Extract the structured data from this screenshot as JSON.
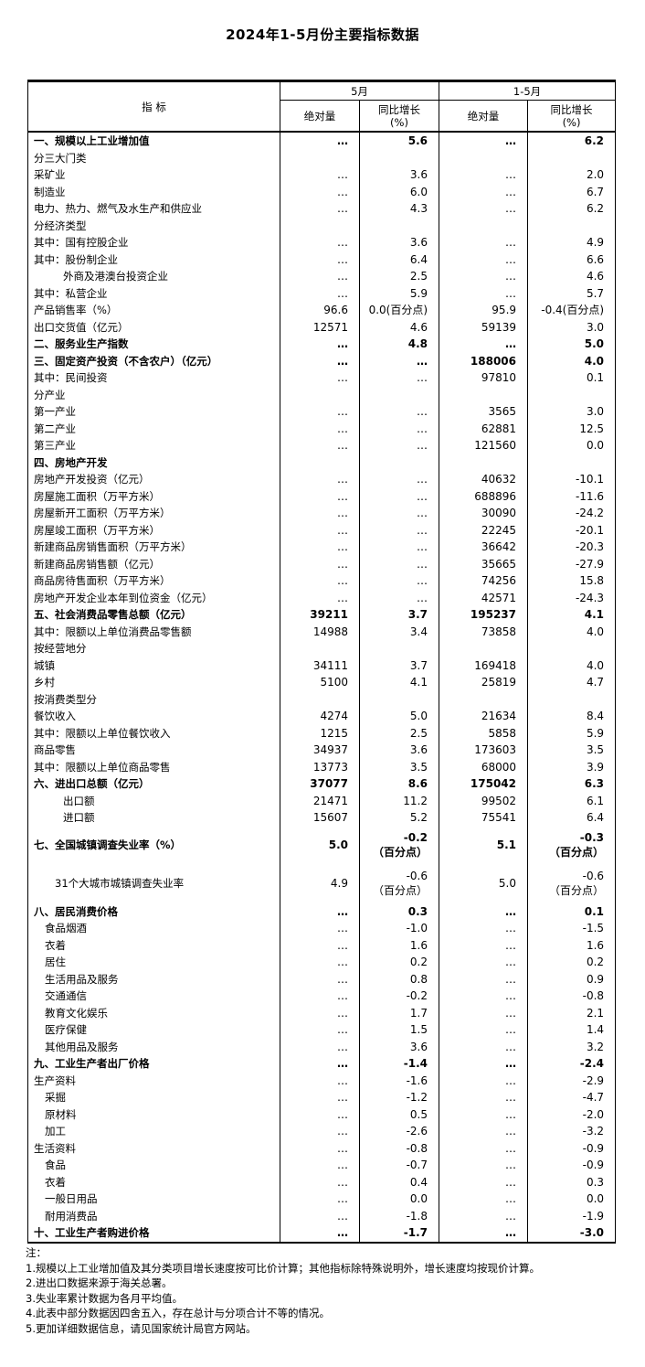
{
  "title": "2024年1-5月份主要指标数据",
  "table": {
    "header": {
      "indicator": "指  标",
      "period_may": "5月",
      "period_cum": "1-5月",
      "absolute_label": "绝对量",
      "yoy_label": "同比增长",
      "yoy_unit": "(%)"
    },
    "rows": [
      {
        "label": "一、规模以上工业增加值",
        "indent": 0,
        "bold": true,
        "tall": false,
        "v": [
          "…",
          "5.6",
          "…",
          "6.2"
        ]
      },
      {
        "label": "分三大门类",
        "indent": 0,
        "bold": false,
        "tall": false,
        "v": [
          "",
          "",
          "",
          ""
        ]
      },
      {
        "label": "采矿业",
        "indent": 0,
        "bold": false,
        "tall": false,
        "v": [
          "…",
          "3.6",
          "…",
          "2.0"
        ]
      },
      {
        "label": "制造业",
        "indent": 0,
        "bold": false,
        "tall": false,
        "v": [
          "…",
          "6.0",
          "…",
          "6.7"
        ]
      },
      {
        "label": "电力、热力、燃气及水生产和供应业",
        "indent": 0,
        "bold": false,
        "tall": false,
        "v": [
          "…",
          "4.3",
          "…",
          "6.2"
        ]
      },
      {
        "label": "分经济类型",
        "indent": 0,
        "bold": false,
        "tall": false,
        "v": [
          "",
          "",
          "",
          ""
        ]
      },
      {
        "label": "其中：国有控股企业",
        "indent": 0,
        "bold": false,
        "tall": false,
        "v": [
          "…",
          "3.6",
          "…",
          "4.9"
        ]
      },
      {
        "label": "其中：股份制企业",
        "indent": 0,
        "bold": false,
        "tall": false,
        "v": [
          "…",
          "6.4",
          "…",
          "6.6"
        ]
      },
      {
        "label": "外商及港澳台投资企业",
        "indent": 3,
        "bold": false,
        "tall": false,
        "v": [
          "…",
          "2.5",
          "…",
          "4.6"
        ]
      },
      {
        "label": "其中：私营企业",
        "indent": 0,
        "bold": false,
        "tall": false,
        "v": [
          "…",
          "5.9",
          "…",
          "5.7"
        ]
      },
      {
        "label": "产品销售率（%）",
        "indent": 0,
        "bold": false,
        "tall": false,
        "v": [
          "96.6",
          "0.0(百分点)",
          "95.9",
          "-0.4(百分点)"
        ]
      },
      {
        "label": "出口交货值（亿元）",
        "indent": 0,
        "bold": false,
        "tall": false,
        "v": [
          "12571",
          "4.6",
          "59139",
          "3.0"
        ]
      },
      {
        "label": "二、服务业生产指数",
        "indent": 0,
        "bold": true,
        "tall": false,
        "v": [
          "…",
          "4.8",
          "…",
          "5.0"
        ]
      },
      {
        "label": "三、固定资产投资（不含农户）（亿元）",
        "indent": 0,
        "bold": true,
        "tall": false,
        "v": [
          "…",
          "…",
          "188006",
          "4.0"
        ]
      },
      {
        "label": "其中：民间投资",
        "indent": 0,
        "bold": false,
        "tall": false,
        "v": [
          "…",
          "…",
          "97810",
          "0.1"
        ]
      },
      {
        "label": "分产业",
        "indent": 0,
        "bold": false,
        "tall": false,
        "v": [
          "",
          "",
          "",
          ""
        ]
      },
      {
        "label": "第一产业",
        "indent": 0,
        "bold": false,
        "tall": false,
        "v": [
          "…",
          "…",
          "3565",
          "3.0"
        ]
      },
      {
        "label": "第二产业",
        "indent": 0,
        "bold": false,
        "tall": false,
        "v": [
          "…",
          "…",
          "62881",
          "12.5"
        ]
      },
      {
        "label": "第三产业",
        "indent": 0,
        "bold": false,
        "tall": false,
        "v": [
          "…",
          "…",
          "121560",
          "0.0"
        ]
      },
      {
        "label": "四、房地产开发",
        "indent": 0,
        "bold": true,
        "tall": false,
        "v": [
          "",
          "",
          "",
          ""
        ]
      },
      {
        "label": "房地产开发投资（亿元）",
        "indent": 0,
        "bold": false,
        "tall": false,
        "v": [
          "…",
          "…",
          "40632",
          "-10.1"
        ]
      },
      {
        "label": "房屋施工面积（万平方米）",
        "indent": 0,
        "bold": false,
        "tall": false,
        "v": [
          "…",
          "…",
          "688896",
          "-11.6"
        ]
      },
      {
        "label": "房屋新开工面积（万平方米）",
        "indent": 0,
        "bold": false,
        "tall": false,
        "v": [
          "…",
          "…",
          "30090",
          "-24.2"
        ]
      },
      {
        "label": "房屋竣工面积（万平方米）",
        "indent": 0,
        "bold": false,
        "tall": false,
        "v": [
          "…",
          "…",
          "22245",
          "-20.1"
        ]
      },
      {
        "label": "新建商品房销售面积（万平方米）",
        "indent": 0,
        "bold": false,
        "tall": false,
        "v": [
          "…",
          "…",
          "36642",
          "-20.3"
        ]
      },
      {
        "label": "新建商品房销售额（亿元）",
        "indent": 0,
        "bold": false,
        "tall": false,
        "v": [
          "…",
          "…",
          "35665",
          "-27.9"
        ]
      },
      {
        "label": "商品房待售面积（万平方米）",
        "indent": 0,
        "bold": false,
        "tall": false,
        "v": [
          "…",
          "…",
          "74256",
          "15.8"
        ]
      },
      {
        "label": "房地产开发企业本年到位资金（亿元）",
        "indent": 0,
        "bold": false,
        "tall": false,
        "v": [
          "…",
          "…",
          "42571",
          "-24.3"
        ]
      },
      {
        "label": "五、社会消费品零售总额（亿元）",
        "indent": 0,
        "bold": true,
        "tall": false,
        "v": [
          "39211",
          "3.7",
          "195237",
          "4.1"
        ]
      },
      {
        "label": "其中：限额以上单位消费品零售额",
        "indent": 0,
        "bold": false,
        "tall": false,
        "v": [
          "14988",
          "3.4",
          "73858",
          "4.0"
        ]
      },
      {
        "label": "按经营地分",
        "indent": 0,
        "bold": false,
        "tall": false,
        "v": [
          "",
          "",
          "",
          ""
        ]
      },
      {
        "label": "城镇",
        "indent": 0,
        "bold": false,
        "tall": false,
        "v": [
          "34111",
          "3.7",
          "169418",
          "4.0"
        ]
      },
      {
        "label": "乡村",
        "indent": 0,
        "bold": false,
        "tall": false,
        "v": [
          "5100",
          "4.1",
          "25819",
          "4.7"
        ]
      },
      {
        "label": "按消费类型分",
        "indent": 0,
        "bold": false,
        "tall": false,
        "v": [
          "",
          "",
          "",
          ""
        ]
      },
      {
        "label": "餐饮收入",
        "indent": 0,
        "bold": false,
        "tall": false,
        "v": [
          "4274",
          "5.0",
          "21634",
          "8.4"
        ]
      },
      {
        "label": "其中：限额以上单位餐饮收入",
        "indent": 0,
        "bold": false,
        "tall": false,
        "v": [
          "1215",
          "2.5",
          "5858",
          "5.9"
        ]
      },
      {
        "label": "商品零售",
        "indent": 0,
        "bold": false,
        "tall": false,
        "v": [
          "34937",
          "3.6",
          "173603",
          "3.5"
        ]
      },
      {
        "label": "其中：限额以上单位商品零售",
        "indent": 0,
        "bold": false,
        "tall": false,
        "v": [
          "13773",
          "3.5",
          "68000",
          "3.9"
        ]
      },
      {
        "label": "六、进出口总额（亿元）",
        "indent": 0,
        "bold": true,
        "tall": false,
        "v": [
          "37077",
          "8.6",
          "175042",
          "6.3"
        ]
      },
      {
        "label": "出口额",
        "indent": 3,
        "bold": false,
        "tall": false,
        "v": [
          "21471",
          "11.2",
          "99502",
          "6.1"
        ]
      },
      {
        "label": "进口额",
        "indent": 3,
        "bold": false,
        "tall": false,
        "v": [
          "15607",
          "5.2",
          "75541",
          "6.4"
        ]
      },
      {
        "label": "七、全国城镇调查失业率（%）",
        "indent": 0,
        "bold": true,
        "tall": true,
        "v": [
          "5.0",
          "-0.2\n（百分点）",
          "5.1",
          "-0.3\n（百分点）"
        ]
      },
      {
        "label": "31个大城市城镇调查失业率",
        "indent": 2,
        "bold": false,
        "tall": true,
        "v": [
          "4.9",
          "-0.6\n（百分点）",
          "5.0",
          "-0.6\n（百分点）"
        ]
      },
      {
        "label": "八、居民消费价格",
        "indent": 0,
        "bold": true,
        "tall": false,
        "v": [
          "…",
          "0.3",
          "…",
          "0.1"
        ]
      },
      {
        "label": "食品烟酒",
        "indent": 1,
        "bold": false,
        "tall": false,
        "v": [
          "…",
          "-1.0",
          "…",
          "-1.5"
        ]
      },
      {
        "label": "衣着",
        "indent": 1,
        "bold": false,
        "tall": false,
        "v": [
          "…",
          "1.6",
          "…",
          "1.6"
        ]
      },
      {
        "label": "居住",
        "indent": 1,
        "bold": false,
        "tall": false,
        "v": [
          "…",
          "0.2",
          "…",
          "0.2"
        ]
      },
      {
        "label": "生活用品及服务",
        "indent": 1,
        "bold": false,
        "tall": false,
        "v": [
          "…",
          "0.8",
          "…",
          "0.9"
        ]
      },
      {
        "label": "交通通信",
        "indent": 1,
        "bold": false,
        "tall": false,
        "v": [
          "…",
          "-0.2",
          "…",
          "-0.8"
        ]
      },
      {
        "label": "教育文化娱乐",
        "indent": 1,
        "bold": false,
        "tall": false,
        "v": [
          "…",
          "1.7",
          "…",
          "2.1"
        ]
      },
      {
        "label": "医疗保健",
        "indent": 1,
        "bold": false,
        "tall": false,
        "v": [
          "…",
          "1.5",
          "…",
          "1.4"
        ]
      },
      {
        "label": "其他用品及服务",
        "indent": 1,
        "bold": false,
        "tall": false,
        "v": [
          "…",
          "3.6",
          "…",
          "3.2"
        ]
      },
      {
        "label": "九、工业生产者出厂价格",
        "indent": 0,
        "bold": true,
        "tall": false,
        "v": [
          "…",
          "-1.4",
          "…",
          "-2.4"
        ]
      },
      {
        "label": "生产资料",
        "indent": 0,
        "bold": false,
        "tall": false,
        "v": [
          "…",
          "-1.6",
          "…",
          "-2.9"
        ]
      },
      {
        "label": "采掘",
        "indent": 1,
        "bold": false,
        "tall": false,
        "v": [
          "…",
          "-1.2",
          "…",
          "-4.7"
        ]
      },
      {
        "label": "原材料",
        "indent": 1,
        "bold": false,
        "tall": false,
        "v": [
          "…",
          "0.5",
          "…",
          "-2.0"
        ]
      },
      {
        "label": "加工",
        "indent": 1,
        "bold": false,
        "tall": false,
        "v": [
          "…",
          "-2.6",
          "…",
          "-3.2"
        ]
      },
      {
        "label": "生活资料",
        "indent": 0,
        "bold": false,
        "tall": false,
        "v": [
          "…",
          "-0.8",
          "…",
          "-0.9"
        ]
      },
      {
        "label": "食品",
        "indent": 1,
        "bold": false,
        "tall": false,
        "v": [
          "…",
          "-0.7",
          "…",
          "-0.9"
        ]
      },
      {
        "label": "衣着",
        "indent": 1,
        "bold": false,
        "tall": false,
        "v": [
          "…",
          "0.4",
          "…",
          "0.3"
        ]
      },
      {
        "label": "一般日用品",
        "indent": 1,
        "bold": false,
        "tall": false,
        "v": [
          "…",
          "0.0",
          "…",
          "0.0"
        ]
      },
      {
        "label": "耐用消费品",
        "indent": 1,
        "bold": false,
        "tall": false,
        "v": [
          "…",
          "-1.8",
          "…",
          "-1.9"
        ]
      },
      {
        "label": "十、工业生产者购进价格",
        "indent": 0,
        "bold": true,
        "tall": false,
        "v": [
          "…",
          "-1.7",
          "…",
          "-3.0"
        ]
      }
    ]
  },
  "notes": {
    "label": "注：",
    "items": [
      "1.规模以上工业增加值及其分类项目增长速度按可比价计算；其他指标除特殊说明外，增长速度均按现价计算。",
      "2.进出口数据来源于海关总署。",
      "3.失业率累计数据为各月平均值。",
      "4.此表中部分数据因四舍五入，存在总计与分项合计不等的情况。",
      "5.更加详细数据信息，请见国家统计局官方网站。"
    ]
  }
}
